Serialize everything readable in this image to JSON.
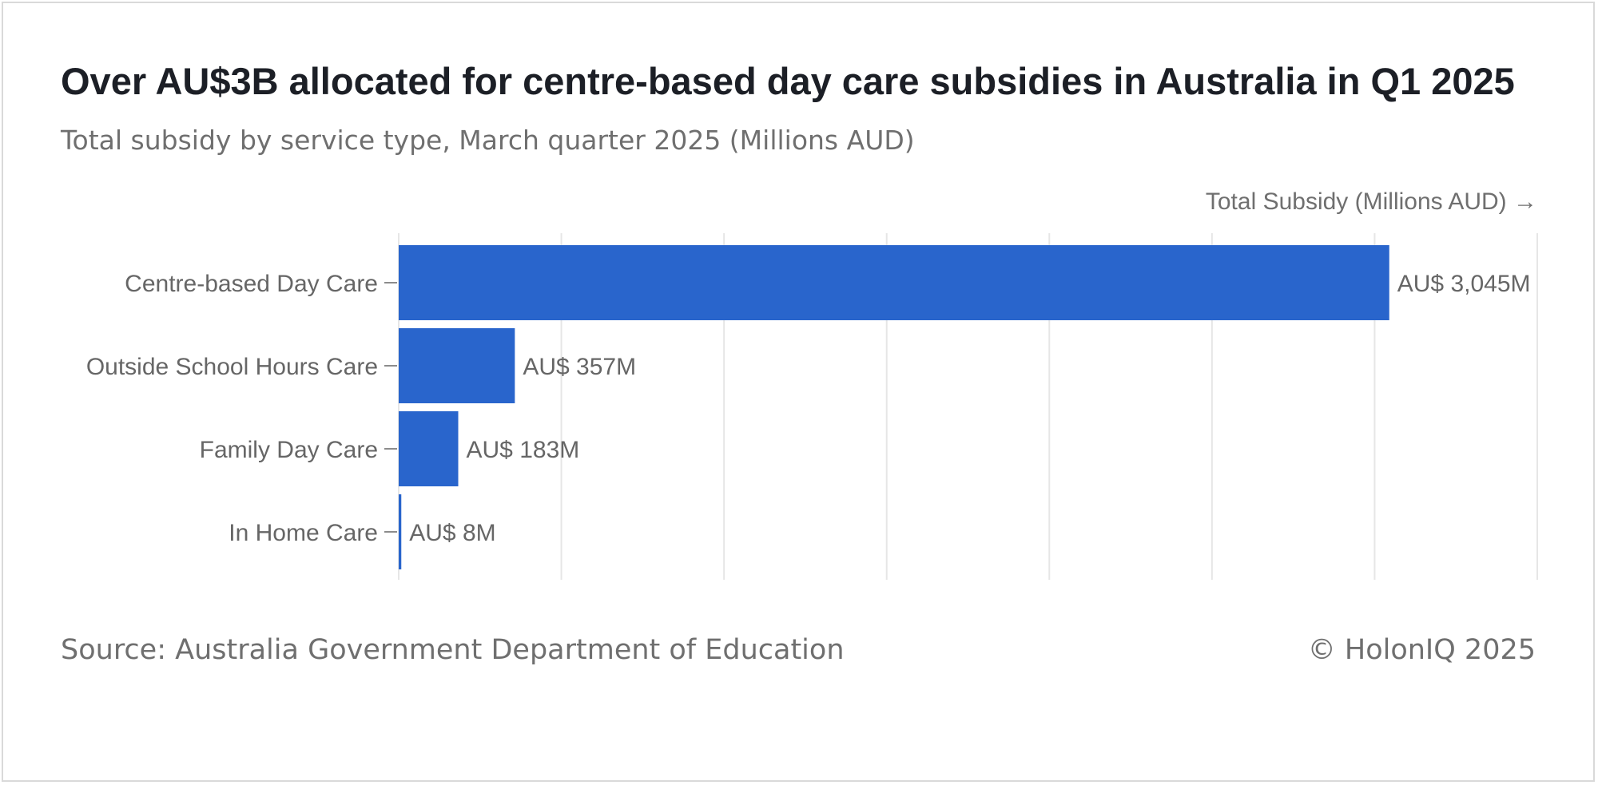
{
  "title": "Over AU$3B allocated for centre-based day care subsidies in Australia in Q1 2025",
  "subtitle": "Total subsidy by service type, March quarter 2025 (Millions AUD)",
  "source": "Source: Australia Government Department of Education",
  "copyright": "© HolonIQ 2025",
  "colors": {
    "bar": "#2965cc",
    "grid": "#e6e6e6",
    "axis": "#8c8c8c"
  },
  "chart_data": {
    "type": "bar",
    "orientation": "horizontal",
    "categories": [
      "Centre-based Day Care",
      "Outside School Hours Care",
      "Family Day Care",
      "In Home Care"
    ],
    "values": [
      3045,
      357,
      183,
      8
    ],
    "data_labels": [
      "AU$ 3,045M",
      "AU$ 357M",
      "AU$ 183M",
      "AU$ 8M"
    ],
    "xlabel": "Total Subsidy (Millions AUD) →",
    "ylabel": "",
    "xlim": [
      0,
      3500
    ],
    "grid_step": 500,
    "grid": true,
    "legend": "none"
  }
}
